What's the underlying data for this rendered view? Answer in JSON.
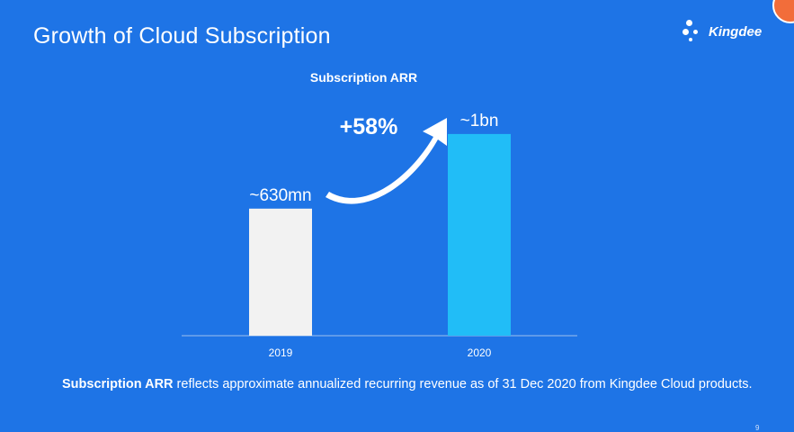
{
  "slide": {
    "title": "Growth of Cloud Subscription",
    "page_number": "9"
  },
  "logo": {
    "text": "Kingdee",
    "icon": "kingdee-dots-logo"
  },
  "colors": {
    "background": "#1e74e6",
    "bar_2019": "#f2f2f2",
    "bar_2020": "#21bdf7",
    "accent_corner": "#f26d3a"
  },
  "chart_data": {
    "type": "bar",
    "title": "Subscription ARR",
    "categories": [
      "2019",
      "2020"
    ],
    "values": [
      0.63,
      1.0
    ],
    "value_unit": "bn",
    "data_labels": [
      "~630mn",
      "~1bn"
    ],
    "annotation": "+58%",
    "xlabel": "",
    "ylabel": "",
    "ylim": [
      0,
      1.12
    ],
    "grid": false,
    "legend": "none"
  },
  "footnote": {
    "bold": "Subscription ARR",
    "rest": " reflects approximate annualized recurring revenue as of 31 Dec 2020 from Kingdee Cloud products."
  }
}
